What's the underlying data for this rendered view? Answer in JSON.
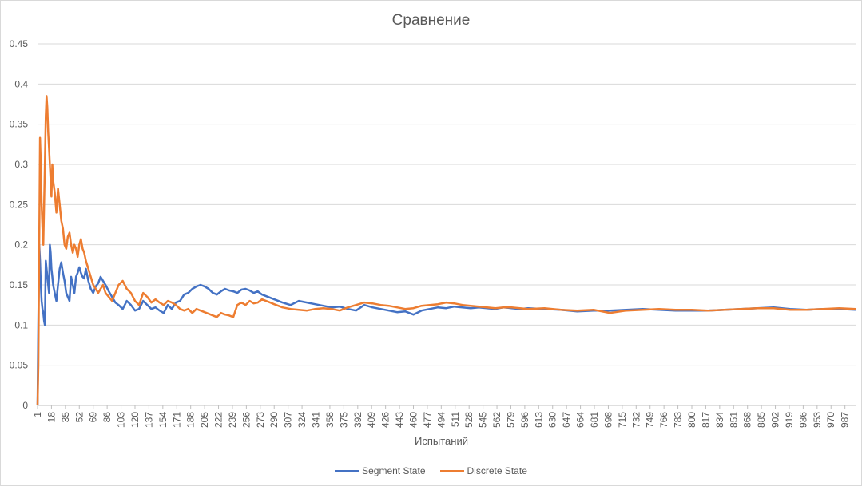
{
  "chart_data": {
    "type": "line",
    "title": "Сравнение",
    "xlabel": "Испытаний",
    "ylabel": "",
    "xlim": [
      1,
      1000
    ],
    "ylim": [
      0,
      0.45
    ],
    "y_ticks": [
      "0",
      "0.05",
      "0.1",
      "0.15",
      "0.2",
      "0.25",
      "0.3",
      "0.35",
      "0.4",
      "0.45"
    ],
    "x_ticks": [
      1,
      18,
      35,
      52,
      69,
      86,
      103,
      120,
      137,
      154,
      171,
      188,
      205,
      222,
      239,
      256,
      273,
      290,
      307,
      324,
      341,
      358,
      375,
      392,
      409,
      426,
      443,
      460,
      477,
      494,
      511,
      528,
      545,
      562,
      579,
      596,
      613,
      630,
      647,
      664,
      681,
      698,
      715,
      732,
      749,
      766,
      783,
      800,
      817,
      834,
      851,
      868,
      885,
      902,
      919,
      936,
      953,
      970,
      987
    ],
    "grid": true,
    "legend_position": "bottom",
    "series": [
      {
        "name": "Segment State",
        "color": "#4472c4",
        "x": [
          1,
          2,
          3,
          4,
          5,
          6,
          7,
          8,
          9,
          10,
          11,
          12,
          13,
          14,
          15,
          16,
          17,
          18,
          19,
          20,
          22,
          24,
          26,
          28,
          30,
          32,
          34,
          36,
          38,
          40,
          42,
          44,
          46,
          48,
          50,
          52,
          54,
          56,
          58,
          60,
          63,
          66,
          69,
          72,
          75,
          78,
          81,
          84,
          88,
          92,
          96,
          100,
          105,
          110,
          115,
          120,
          125,
          130,
          135,
          140,
          145,
          150,
          155,
          160,
          165,
          170,
          175,
          180,
          185,
          190,
          195,
          200,
          205,
          210,
          215,
          220,
          225,
          230,
          235,
          240,
          245,
          250,
          255,
          260,
          265,
          270,
          275,
          280,
          285,
          290,
          295,
          300,
          310,
          320,
          330,
          340,
          350,
          360,
          370,
          380,
          390,
          400,
          410,
          420,
          430,
          440,
          450,
          460,
          470,
          480,
          490,
          500,
          510,
          520,
          530,
          540,
          550,
          560,
          570,
          580,
          590,
          600,
          620,
          640,
          660,
          680,
          700,
          720,
          740,
          760,
          780,
          800,
          820,
          840,
          860,
          880,
          900,
          920,
          940,
          960,
          980,
          1000
        ],
        "values": [
          0,
          0.1,
          0.2,
          0.18,
          0.15,
          0.13,
          0.12,
          0.115,
          0.105,
          0.1,
          0.18,
          0.17,
          0.16,
          0.15,
          0.14,
          0.2,
          0.19,
          0.17,
          0.16,
          0.15,
          0.14,
          0.13,
          0.15,
          0.17,
          0.178,
          0.165,
          0.155,
          0.14,
          0.135,
          0.13,
          0.16,
          0.15,
          0.14,
          0.16,
          0.165,
          0.172,
          0.165,
          0.16,
          0.158,
          0.17,
          0.155,
          0.145,
          0.14,
          0.148,
          0.152,
          0.16,
          0.155,
          0.15,
          0.142,
          0.135,
          0.128,
          0.125,
          0.12,
          0.13,
          0.125,
          0.118,
          0.12,
          0.13,
          0.125,
          0.12,
          0.122,
          0.118,
          0.115,
          0.125,
          0.12,
          0.128,
          0.13,
          0.138,
          0.14,
          0.145,
          0.148,
          0.15,
          0.148,
          0.145,
          0.14,
          0.138,
          0.142,
          0.145,
          0.143,
          0.142,
          0.14,
          0.144,
          0.145,
          0.143,
          0.14,
          0.142,
          0.138,
          0.136,
          0.134,
          0.132,
          0.13,
          0.128,
          0.125,
          0.13,
          0.128,
          0.126,
          0.124,
          0.122,
          0.123,
          0.12,
          0.118,
          0.125,
          0.122,
          0.12,
          0.118,
          0.116,
          0.117,
          0.113,
          0.118,
          0.12,
          0.122,
          0.121,
          0.123,
          0.122,
          0.121,
          0.122,
          0.121,
          0.12,
          0.122,
          0.121,
          0.12,
          0.121,
          0.12,
          0.119,
          0.117,
          0.118,
          0.118,
          0.119,
          0.12,
          0.119,
          0.118,
          0.118,
          0.118,
          0.119,
          0.12,
          0.121,
          0.122,
          0.12,
          0.119,
          0.12,
          0.12,
          0.119
        ]
      },
      {
        "name": "Discrete State",
        "color": "#ed7d31",
        "x": [
          1,
          2,
          3,
          4,
          5,
          6,
          7,
          8,
          9,
          10,
          11,
          12,
          13,
          14,
          15,
          16,
          17,
          18,
          19,
          20,
          22,
          24,
          26,
          28,
          30,
          32,
          34,
          36,
          38,
          40,
          42,
          44,
          46,
          48,
          50,
          52,
          54,
          56,
          58,
          60,
          63,
          66,
          69,
          72,
          75,
          78,
          81,
          84,
          88,
          92,
          96,
          100,
          105,
          110,
          115,
          120,
          125,
          130,
          135,
          140,
          145,
          150,
          155,
          160,
          165,
          170,
          175,
          180,
          185,
          190,
          195,
          200,
          205,
          210,
          215,
          220,
          225,
          230,
          235,
          240,
          245,
          250,
          255,
          260,
          265,
          270,
          275,
          280,
          285,
          290,
          295,
          300,
          310,
          320,
          330,
          340,
          350,
          360,
          370,
          380,
          390,
          400,
          410,
          420,
          430,
          440,
          450,
          460,
          470,
          480,
          490,
          500,
          510,
          520,
          530,
          540,
          550,
          560,
          570,
          580,
          590,
          600,
          620,
          640,
          660,
          680,
          700,
          720,
          740,
          760,
          780,
          800,
          820,
          840,
          860,
          880,
          900,
          920,
          940,
          960,
          980,
          1000
        ],
        "values": [
          0,
          0.05,
          0.2,
          0.333,
          0.3,
          0.25,
          0.22,
          0.2,
          0.25,
          0.3,
          0.36,
          0.385,
          0.37,
          0.34,
          0.32,
          0.3,
          0.28,
          0.26,
          0.3,
          0.28,
          0.265,
          0.24,
          0.27,
          0.25,
          0.23,
          0.22,
          0.2,
          0.195,
          0.21,
          0.215,
          0.2,
          0.19,
          0.2,
          0.195,
          0.185,
          0.2,
          0.207,
          0.195,
          0.19,
          0.18,
          0.17,
          0.16,
          0.15,
          0.145,
          0.14,
          0.145,
          0.15,
          0.14,
          0.135,
          0.13,
          0.14,
          0.15,
          0.155,
          0.145,
          0.14,
          0.13,
          0.125,
          0.14,
          0.135,
          0.128,
          0.132,
          0.128,
          0.125,
          0.13,
          0.128,
          0.125,
          0.12,
          0.118,
          0.12,
          0.115,
          0.12,
          0.118,
          0.116,
          0.114,
          0.112,
          0.11,
          0.115,
          0.113,
          0.112,
          0.11,
          0.125,
          0.128,
          0.125,
          0.13,
          0.127,
          0.128,
          0.132,
          0.13,
          0.128,
          0.126,
          0.124,
          0.122,
          0.12,
          0.119,
          0.118,
          0.12,
          0.121,
          0.12,
          0.118,
          0.122,
          0.125,
          0.128,
          0.127,
          0.125,
          0.124,
          0.122,
          0.12,
          0.121,
          0.124,
          0.125,
          0.126,
          0.128,
          0.127,
          0.125,
          0.124,
          0.123,
          0.122,
          0.121,
          0.122,
          0.122,
          0.121,
          0.12,
          0.121,
          0.119,
          0.118,
          0.119,
          0.115,
          0.118,
          0.119,
          0.12,
          0.119,
          0.119,
          0.118,
          0.119,
          0.12,
          0.121,
          0.121,
          0.119,
          0.119,
          0.12,
          0.121,
          0.12
        ]
      }
    ]
  }
}
